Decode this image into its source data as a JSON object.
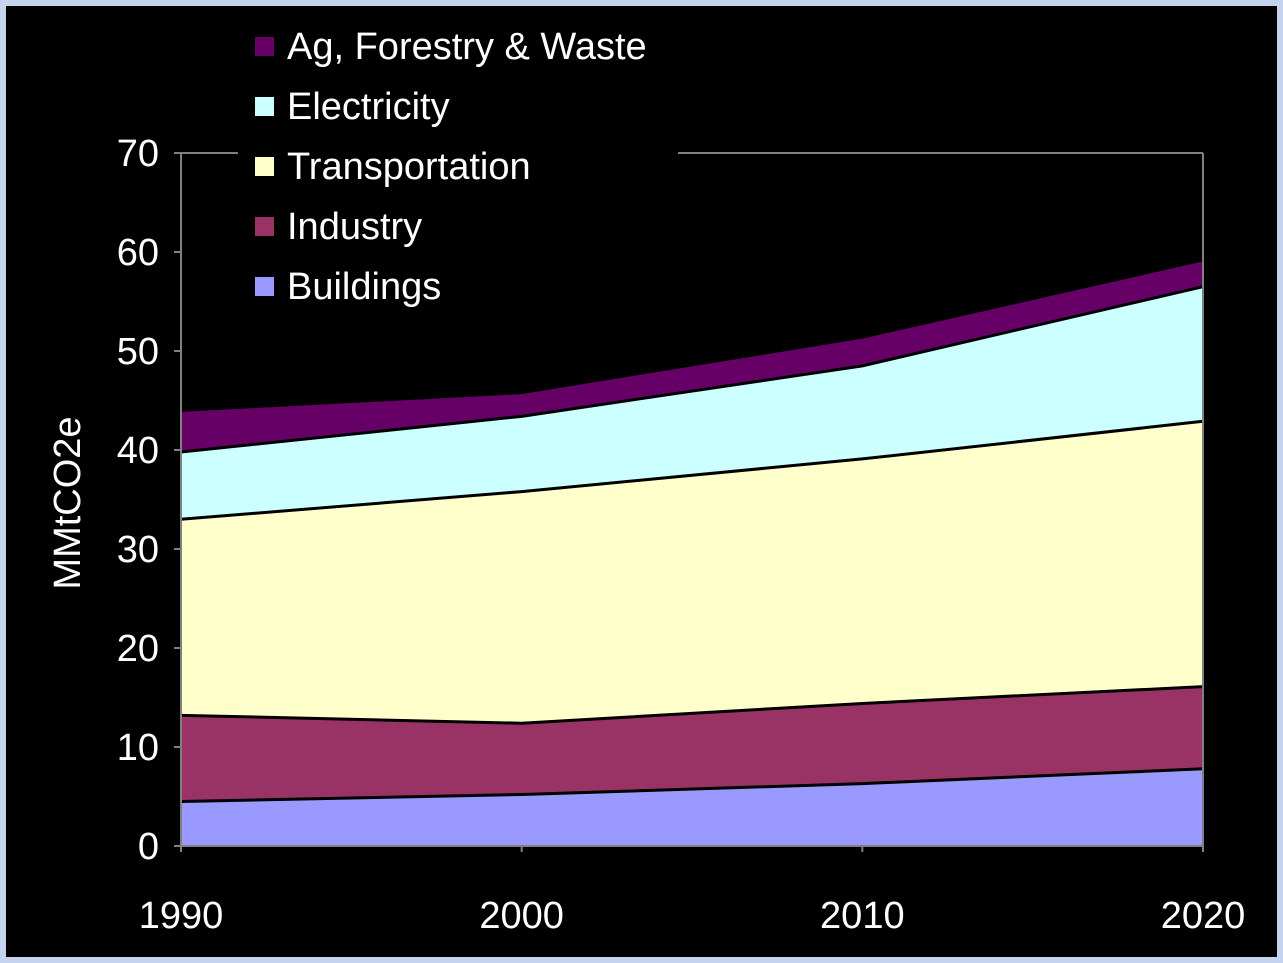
{
  "chart_data": {
    "type": "area",
    "stacked": true,
    "x": [
      1990,
      2000,
      2010,
      2020
    ],
    "series": [
      {
        "name": "Buildings",
        "color": "#9999ff",
        "values": [
          4.5,
          5.2,
          6.3,
          7.8
        ]
      },
      {
        "name": "Industry",
        "color": "#993366",
        "values": [
          8.7,
          7.2,
          8.1,
          8.3
        ]
      },
      {
        "name": "Transportation",
        "color": "#ffffcc",
        "values": [
          19.8,
          23.4,
          24.7,
          26.8
        ]
      },
      {
        "name": "Electricity",
        "color": "#ccffff",
        "values": [
          6.8,
          7.6,
          9.4,
          13.6
        ]
      },
      {
        "name": "Ag, Forestry & Waste",
        "color": "#660066",
        "values": [
          4.2,
          2.4,
          2.9,
          2.7
        ]
      }
    ],
    "xlabel": "",
    "ylabel": "MMtCO2e",
    "ylim": [
      0,
      70
    ],
    "yticks": [
      0,
      10,
      20,
      30,
      40,
      50,
      60,
      70
    ],
    "xticks": [
      "1990",
      "2000",
      "2010",
      "2020"
    ],
    "legend_order": [
      "Ag, Forestry & Waste",
      "Electricity",
      "Transportation",
      "Industry",
      "Buildings"
    ],
    "legend_position": "top-left",
    "grid": false
  }
}
